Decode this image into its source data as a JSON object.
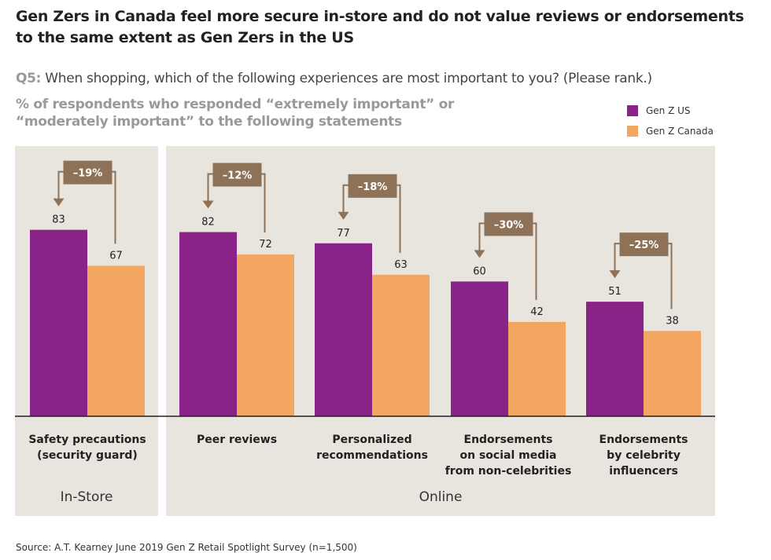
{
  "title": "Gen Zers in Canada feel more secure in-store and do not value reviews or endorsements to the same extent as Gen Zers in the US",
  "question_label": "Q5:",
  "question": "When shopping, which of the following experiences are most important to you? (Please rank.)",
  "subtitle": "% of respondents who responded “extremely important” or “moderately important” to the following statements",
  "source": "Source: A.T. Kearney June 2019 Gen Z Retail Spotlight Survey (n=1,500)",
  "chart_data": {
    "type": "bar",
    "categories": [
      [
        "Safety precautions",
        "(security guard)"
      ],
      [
        "Peer reviews"
      ],
      [
        "Personalized",
        "recommendations"
      ],
      [
        "Endorsements",
        "on social media",
        "from non-celebrities"
      ],
      [
        "Endorsements",
        "by celebrity",
        "influencers"
      ]
    ],
    "groups": [
      {
        "label": "In-Store",
        "categories": [
          0
        ]
      },
      {
        "label": "Online",
        "categories": [
          1,
          2,
          3,
          4
        ]
      }
    ],
    "series": [
      {
        "name": "Gen Z US",
        "color": "#8a2388",
        "values": [
          83,
          82,
          77,
          60,
          51
        ]
      },
      {
        "name": "Gen Z Canada",
        "color": "#f3a661",
        "values": [
          67,
          72,
          63,
          42,
          38
        ]
      }
    ],
    "differences": [
      "–19%",
      "–12%",
      "–18%",
      "–30%",
      "–25%"
    ],
    "ylim": [
      0,
      100
    ],
    "grid": false,
    "legend": "top-right",
    "panel_color": "#e8e4de",
    "annotation_color": "#8d7258"
  }
}
